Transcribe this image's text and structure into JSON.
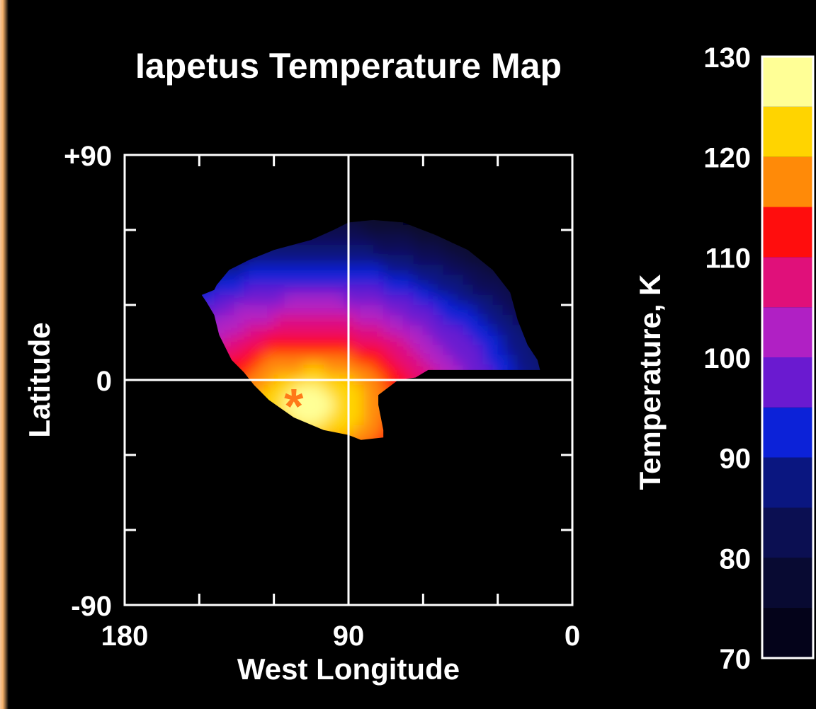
{
  "chart_data": {
    "type": "heatmap",
    "title": "Iapetus Temperature Map",
    "xlabel": "West Longitude",
    "ylabel": "Latitude",
    "x_axis": {
      "range": [
        180,
        0
      ],
      "reversed": true,
      "tick_labels": [
        "180",
        "90",
        "0"
      ]
    },
    "y_axis": {
      "range": [
        -90,
        90
      ],
      "tick_labels": [
        "+90",
        "0",
        "-90"
      ]
    },
    "grid": "lines at 90 longitude and 0 latitude",
    "colorbar": {
      "label": "Temperature, K",
      "range": [
        70,
        130
      ],
      "tick_labels": [
        "130",
        "120",
        "110",
        "100",
        "90",
        "80",
        "70"
      ],
      "bins": [
        {
          "min": 70,
          "max": 75,
          "color": "#04031a"
        },
        {
          "min": 75,
          "max": 80,
          "color": "#080a32"
        },
        {
          "min": 80,
          "max": 85,
          "color": "#0b0f52"
        },
        {
          "min": 85,
          "max": 90,
          "color": "#0a1680"
        },
        {
          "min": 90,
          "max": 95,
          "color": "#0c22d8"
        },
        {
          "min": 95,
          "max": 100,
          "color": "#6a1ad0"
        },
        {
          "min": 100,
          "max": 105,
          "color": "#b020c4"
        },
        {
          "min": 105,
          "max": 110,
          "color": "#e0107a"
        },
        {
          "min": 110,
          "max": 115,
          "color": "#ff0d0d"
        },
        {
          "min": 115,
          "max": 120,
          "color": "#ff8a08"
        },
        {
          "min": 120,
          "max": 125,
          "color": "#ffd400"
        },
        {
          "min": 125,
          "max": 130,
          "color": "#ffff96"
        }
      ]
    },
    "marker": {
      "symbol": "*",
      "longitude": 112,
      "latitude": -6,
      "color": "#ff7a18"
    },
    "coverage": "Observed region roughly from 150 to 12 West Longitude and from about -25 to +52 latitude; peak temperatures (about 128 K) centered near 105 W, -10 latitude; unobserved areas are black."
  }
}
